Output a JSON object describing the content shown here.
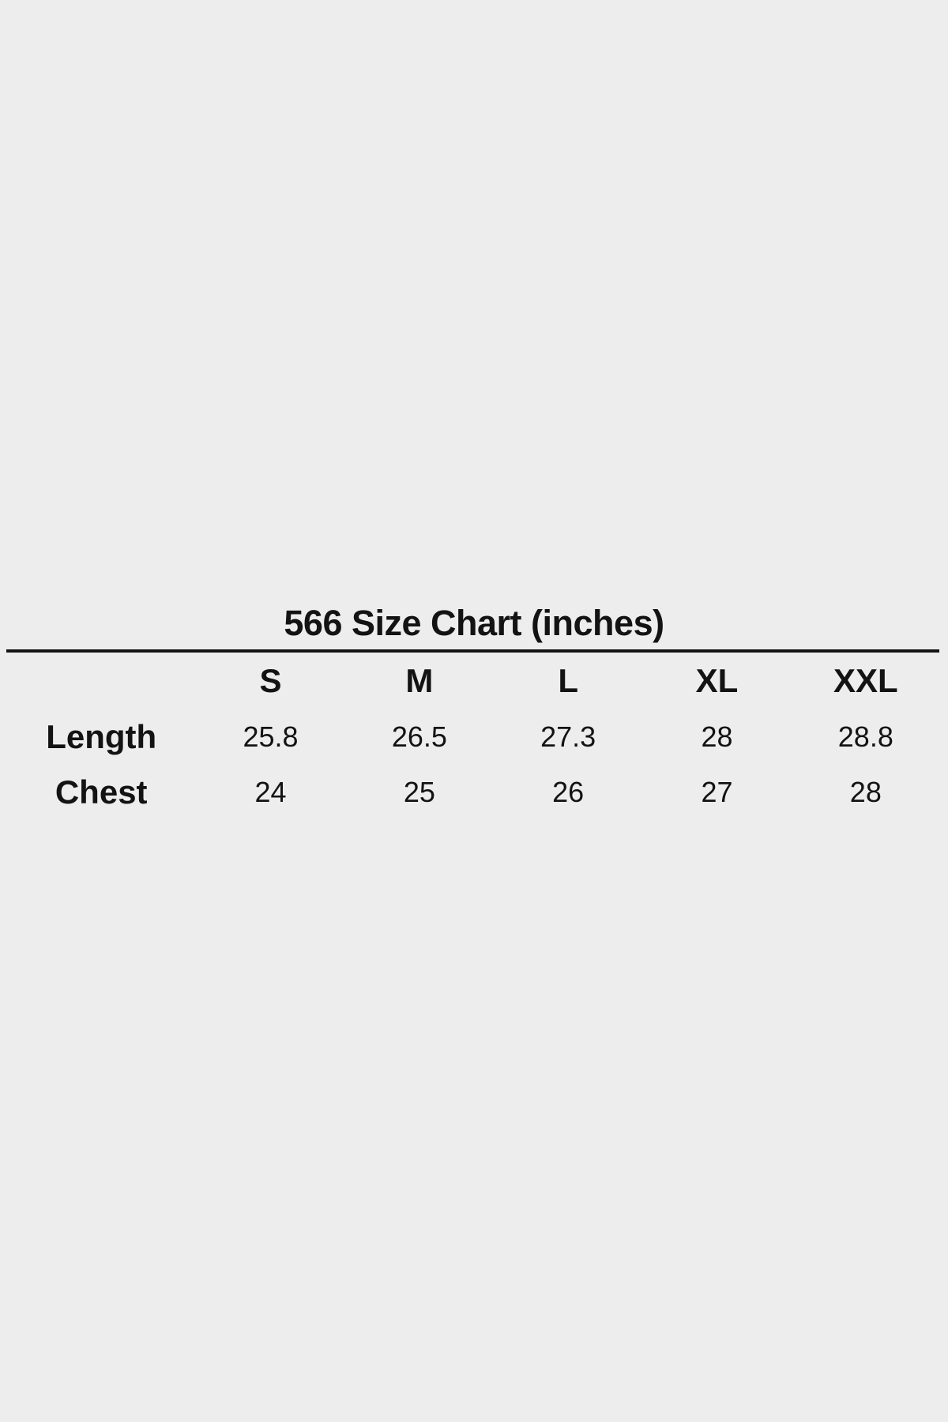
{
  "colors": {
    "background": "#ededed",
    "text": "#131313",
    "divider": "#141414"
  },
  "chart_data": {
    "type": "table",
    "title": "566 Size Chart (inches)",
    "unit": "inches",
    "columns": [
      "S",
      "M",
      "L",
      "XL",
      "XXL"
    ],
    "rows": [
      {
        "label": "Length",
        "values": [
          "25.8",
          "26.5",
          "27.3",
          "28",
          "28.8"
        ]
      },
      {
        "label": "Chest",
        "values": [
          "24",
          "25",
          "26",
          "27",
          "28"
        ]
      }
    ]
  }
}
